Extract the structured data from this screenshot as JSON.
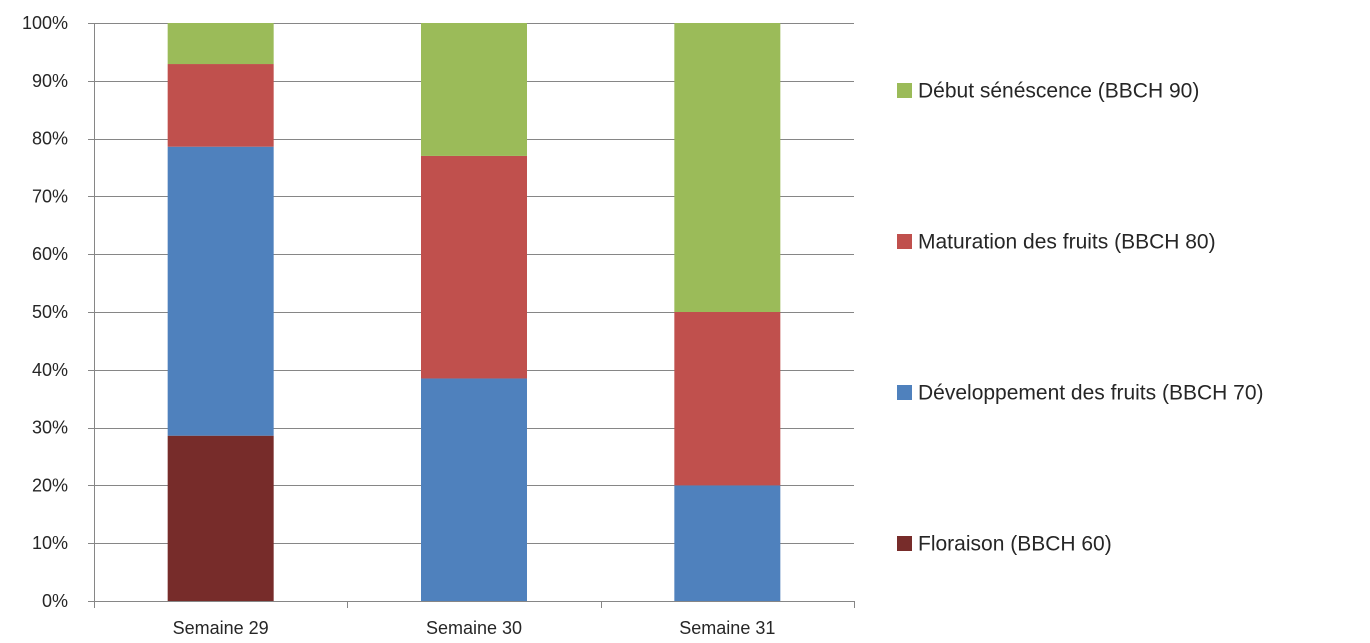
{
  "chart_data": {
    "type": "bar",
    "stacked": true,
    "categories": [
      "Semaine 29",
      "Semaine 30",
      "Semaine 31"
    ],
    "series": [
      {
        "name": "Floraison (BBCH 60)",
        "color": "#772C2A",
        "values": [
          28.6,
          0,
          0
        ]
      },
      {
        "name": "Développement des fruits (BBCH 70)",
        "color": "#4F81BD",
        "values": [
          50.0,
          38.5,
          20.0
        ]
      },
      {
        "name": "Maturation des fruits (BBCH 80)",
        "color": "#C0504D",
        "values": [
          14.3,
          38.5,
          30.0
        ]
      },
      {
        "name": "Début sénéscence (BBCH 90)",
        "color": "#9BBB59",
        "values": [
          7.1,
          23.0,
          50.0
        ]
      }
    ],
    "y_ticks": [
      "0%",
      "10%",
      "20%",
      "30%",
      "40%",
      "50%",
      "60%",
      "70%",
      "80%",
      "90%",
      "100%"
    ],
    "ylim": [
      0,
      100
    ],
    "grid": true,
    "legend_position": "right"
  }
}
